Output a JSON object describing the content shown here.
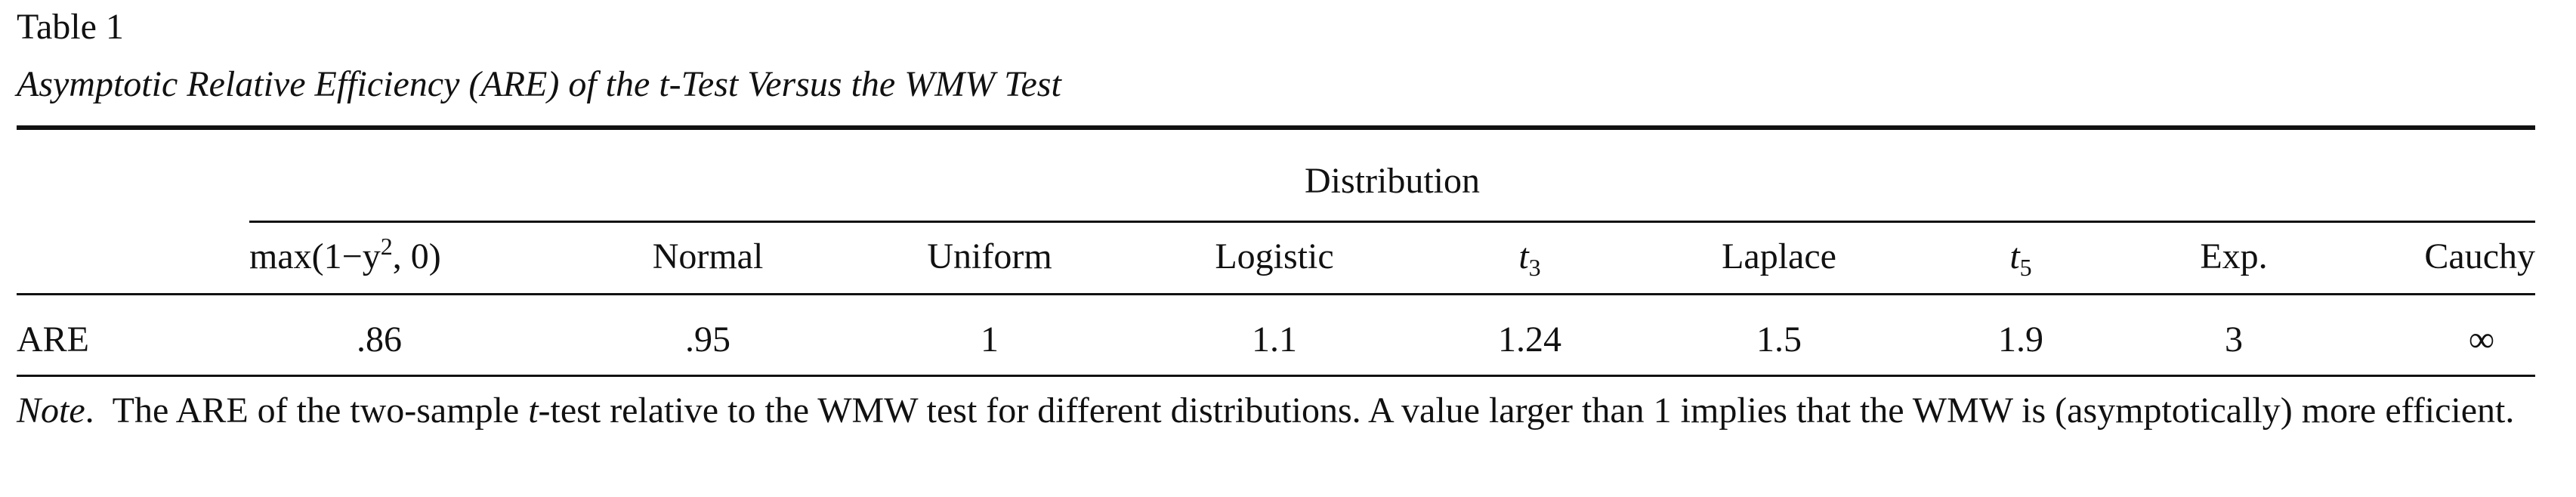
{
  "table": {
    "number": "Table 1",
    "title": "Asymptotic Relative Efficiency (ARE) of the t-Test Versus the WMW Test",
    "spanner": "Distribution",
    "stub_label": "ARE",
    "columns": [
      {
        "base": "max(1−y",
        "sup": "2",
        "tail": ", 0)"
      },
      {
        "label": "Normal"
      },
      {
        "label": "Uniform"
      },
      {
        "label": "Logistic"
      },
      {
        "base": "t",
        "sub": "3"
      },
      {
        "label": "Laplace"
      },
      {
        "base": "t",
        "sub": "5"
      },
      {
        "label": "Exp."
      },
      {
        "label": "Cauchy"
      }
    ],
    "values": [
      ".86",
      ".95",
      "1",
      "1.1",
      "1.24",
      "1.5",
      "1.9",
      "3",
      "∞"
    ]
  },
  "note": {
    "lead": "Note",
    "lead_punct": ".",
    "part1": "The ARE of the two-sample ",
    "italic": "t",
    "part2": "-test relative to the WMW test for different distributions. A value larger than 1 implies that the WMW is (asymptotically) more efficient."
  }
}
